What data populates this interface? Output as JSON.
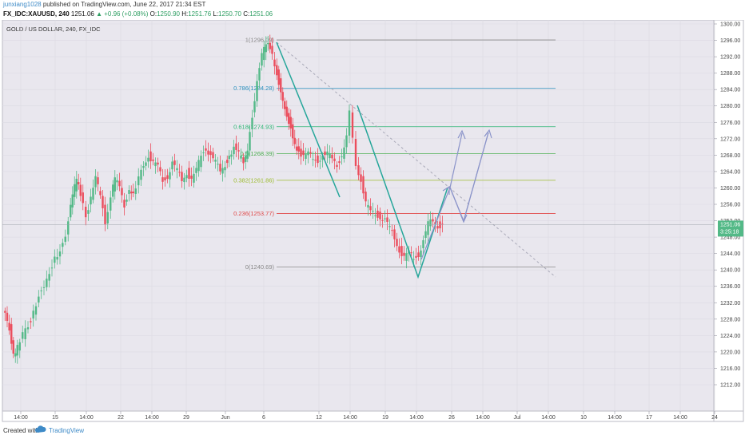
{
  "header": {
    "author": "junxiang1028",
    "published_text": "published on TradingView.com, June 22, 2017 21:34 EST",
    "symbol": "FX_IDC:XAUUSD, 240",
    "last": "1251.06",
    "change_text": "+0.96 (+0.08%)",
    "open_label": "O:",
    "open": "1250.90",
    "high_label": "H:",
    "high": "1251.76",
    "low_label": "L:",
    "low": "1250.70",
    "close_label": "C:",
    "close": "1251.06"
  },
  "chart_title": "GOLD / US DOLLAR, 240, FX_IDC",
  "footer": {
    "created_with": "Created with",
    "brand": "TradingView"
  },
  "colors": {
    "background": "#e9e7ee",
    "up_candle": "#53b987",
    "down_candle": "#eb4d5c",
    "projection_arrow": "#8a93c9",
    "trend_line": "#26a69a",
    "dashed_line": "#a9a9b8"
  },
  "chart_data": {
    "type": "candlestick",
    "y_range": [
      1210,
      1300
    ],
    "y_ticks": [
      "1300.00",
      "1296.00",
      "1292.00",
      "1288.00",
      "1284.00",
      "1280.00",
      "1276.00",
      "1272.00",
      "1268.00",
      "1264.00",
      "1260.00",
      "1256.00",
      "1252.00",
      "1248.00",
      "1244.00",
      "1240.00",
      "1236.00",
      "1232.00",
      "1228.00",
      "1224.00",
      "1220.00",
      "1216.00",
      "1212.00"
    ],
    "x_ticks": [
      "14:00",
      "15",
      "14:00",
      "22",
      "14:00",
      "29",
      "Jun",
      "6",
      "12",
      "14:00",
      "19",
      "14:00",
      "26",
      "14:00",
      "Jul",
      "14:00",
      "10",
      "14:00",
      "17",
      "14:00",
      "24"
    ],
    "last_price_label": "1251.06",
    "countdown_label": "3:25:18",
    "last_price": 1251.06,
    "fibonacci": [
      {
        "level": "1",
        "price": 1296.09,
        "label": "1(1296.09)",
        "color": "#8a8a8a"
      },
      {
        "level": "0.786",
        "price": 1284.28,
        "label": "0.786(1284.28)",
        "color": "#2a8fbd"
      },
      {
        "level": "0.618",
        "price": 1274.93,
        "label": "0.618(1274.93)",
        "color": "#2bb673"
      },
      {
        "level": "0.5",
        "price": 1268.39,
        "label": "0.5(1268.39)",
        "color": "#4caf50"
      },
      {
        "level": "0.382",
        "price": 1261.86,
        "label": "0.382(1261.86)",
        "color": "#9dbb30"
      },
      {
        "level": "0.236",
        "price": 1253.77,
        "label": "0.236(1253.77)",
        "color": "#e04848"
      },
      {
        "level": "0",
        "price": 1240.69,
        "label": "0(1240.69)",
        "color": "#8a8a8a"
      }
    ],
    "segments": [
      {
        "name": "price-path",
        "points": [
          [
            0,
            1230
          ],
          [
            8,
            1226
          ],
          [
            13,
            1219
          ],
          [
            18,
            1221
          ],
          [
            25,
            1224
          ],
          [
            35,
            1228
          ],
          [
            45,
            1234
          ],
          [
            55,
            1238
          ],
          [
            65,
            1243
          ],
          [
            75,
            1246
          ],
          [
            82,
            1252
          ],
          [
            87,
            1258
          ],
          [
            92,
            1262
          ],
          [
            97,
            1258
          ],
          [
            104,
            1253
          ],
          [
            110,
            1258
          ],
          [
            116,
            1262
          ],
          [
            122,
            1258
          ],
          [
            128,
            1252
          ],
          [
            135,
            1258
          ],
          [
            140,
            1262
          ],
          [
            146,
            1260
          ],
          [
            152,
            1256
          ],
          [
            158,
            1260
          ],
          [
            163,
            1258
          ],
          [
            170,
            1262
          ],
          [
            176,
            1266
          ],
          [
            182,
            1268
          ],
          [
            188,
            1266
          ],
          [
            194,
            1265
          ],
          [
            200,
            1262
          ],
          [
            206,
            1263
          ],
          [
            212,
            1266
          ],
          [
            218,
            1264
          ],
          [
            224,
            1262
          ],
          [
            230,
            1264
          ],
          [
            236,
            1262
          ],
          [
            242,
            1264
          ],
          [
            248,
            1268
          ],
          [
            254,
            1270
          ],
          [
            260,
            1268
          ],
          [
            266,
            1266
          ],
          [
            272,
            1264
          ],
          [
            278,
            1266
          ],
          [
            283,
            1268
          ],
          [
            289,
            1270
          ],
          [
            295,
            1268
          ],
          [
            301,
            1266
          ],
          [
            306,
            1270
          ],
          [
            312,
            1278
          ],
          [
            318,
            1286
          ],
          [
            324,
            1292
          ],
          [
            329,
            1295
          ],
          [
            334,
            1294
          ],
          [
            340,
            1290
          ],
          [
            345,
            1286
          ],
          [
            350,
            1282
          ],
          [
            355,
            1278
          ],
          [
            360,
            1275
          ],
          [
            365,
            1271
          ],
          [
            370,
            1269
          ],
          [
            376,
            1268
          ],
          [
            382,
            1268
          ],
          [
            388,
            1267
          ],
          [
            394,
            1267
          ],
          [
            400,
            1268
          ],
          [
            406,
            1268
          ],
          [
            412,
            1267
          ],
          [
            418,
            1266
          ],
          [
            424,
            1268
          ],
          [
            430,
            1272
          ],
          [
            434,
            1278
          ],
          [
            438,
            1272
          ],
          [
            442,
            1266
          ],
          [
            448,
            1262
          ],
          [
            454,
            1256
          ],
          [
            460,
            1254
          ],
          [
            466,
            1254
          ],
          [
            472,
            1253
          ],
          [
            478,
            1252
          ],
          [
            484,
            1250
          ],
          [
            490,
            1248
          ],
          [
            496,
            1245
          ],
          [
            502,
            1243
          ],
          [
            508,
            1244
          ],
          [
            514,
            1243
          ],
          [
            520,
            1244
          ],
          [
            526,
            1247
          ],
          [
            532,
            1251
          ],
          [
            538,
            1252
          ],
          [
            544,
            1251
          ],
          [
            550,
            1251
          ]
        ]
      }
    ]
  }
}
